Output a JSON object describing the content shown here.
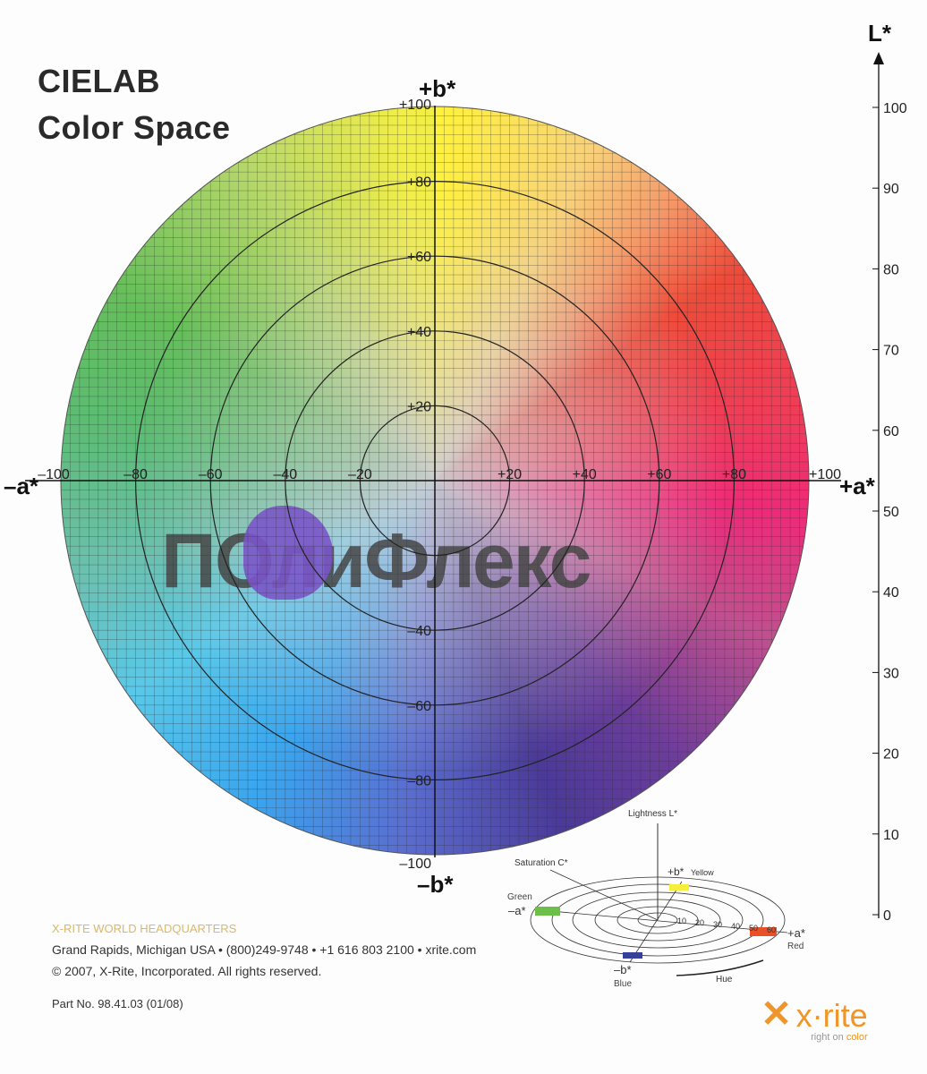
{
  "title_line1": "CIELAB",
  "title_line2": "Color Space",
  "axes": {
    "plus_b": "+b*",
    "minus_b": "–b*",
    "plus_a": "+a*",
    "minus_a": "–a*",
    "L": "L*",
    "a_ticks": [
      "–100",
      "–80",
      "–60",
      "–40",
      "–20",
      "+20",
      "+40",
      "+60",
      "+80",
      "+100"
    ],
    "b_ticks": [
      "+100",
      "+80",
      "+60",
      "+40",
      "+20",
      "–40",
      "–60",
      "–80",
      "–100"
    ],
    "L_ticks": [
      "0",
      "10",
      "20",
      "30",
      "40",
      "50",
      "60",
      "70",
      "80",
      "90",
      "100"
    ]
  },
  "watermark_logo": "ПОлиФлекс",
  "inset": {
    "lightness": "Lightness L*",
    "saturation": "Saturation C*",
    "yellow": "Yellow",
    "plus_b": "+b*",
    "green": "Green",
    "minus_a": "–a*",
    "plus_a": "+a*",
    "red": "Red",
    "minus_b": "–b*",
    "blue": "Blue",
    "hue": "Hue",
    "ring_labels": [
      "10",
      "20",
      "30",
      "40",
      "50",
      "60"
    ]
  },
  "footer": {
    "hq": "X-RITE WORLD HEADQUARTERS",
    "address": "Grand Rapids, Michigan USA • (800)249-9748 • +1 616 803 2100 • xrite.com",
    "copyright": "© 2007, X-Rite, Incorporated. All rights reserved.",
    "part": "Part  No. 98.41.03 (01/08)"
  },
  "brand": {
    "name": "x·rite",
    "tagline_a": "right on ",
    "tagline_b": "color"
  },
  "colors": {
    "hq": "#d9b96a",
    "brand_orange": "#f0952a",
    "grid": "#333333"
  }
}
